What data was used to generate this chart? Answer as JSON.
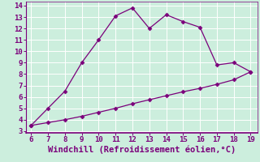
{
  "line1_x": [
    6,
    7,
    8,
    9,
    10,
    11,
    12,
    13,
    14,
    15,
    16,
    17,
    18,
    19
  ],
  "line1_y": [
    3.5,
    5.0,
    6.5,
    9.0,
    11.0,
    13.1,
    13.8,
    12.0,
    13.2,
    12.6,
    12.1,
    8.8,
    9.0,
    8.2
  ],
  "line2_x": [
    6,
    7,
    8,
    9,
    10,
    11,
    12,
    13,
    14,
    15,
    16,
    17,
    18,
    19
  ],
  "line2_y": [
    3.5,
    3.75,
    4.0,
    4.3,
    4.65,
    5.0,
    5.4,
    5.75,
    6.1,
    6.45,
    6.75,
    7.1,
    7.5,
    8.2
  ],
  "line_color": "#7b007b",
  "marker1": "D",
  "marker2": "D",
  "markersize1": 2.5,
  "markersize2": 2.5,
  "linewidth": 0.9,
  "xlabel": "Windchill (Refroidissement éolien,°C)",
  "xlabel_fontsize": 7.5,
  "xlim": [
    6,
    19
  ],
  "ylim": [
    3,
    14
  ],
  "xticks": [
    6,
    7,
    8,
    9,
    10,
    11,
    12,
    13,
    14,
    15,
    16,
    17,
    18,
    19
  ],
  "yticks": [
    3,
    4,
    5,
    6,
    7,
    8,
    9,
    10,
    11,
    12,
    13,
    14
  ],
  "tick_fontsize": 6.5,
  "bg_color": "#cceedd",
  "plot_bg_color": "#cceedd",
  "grid_color": "#ffffff",
  "axes_color": "#7b007b",
  "spine_bottom_color": "#7b007b",
  "xlabel_bar_color": "#7b007b"
}
